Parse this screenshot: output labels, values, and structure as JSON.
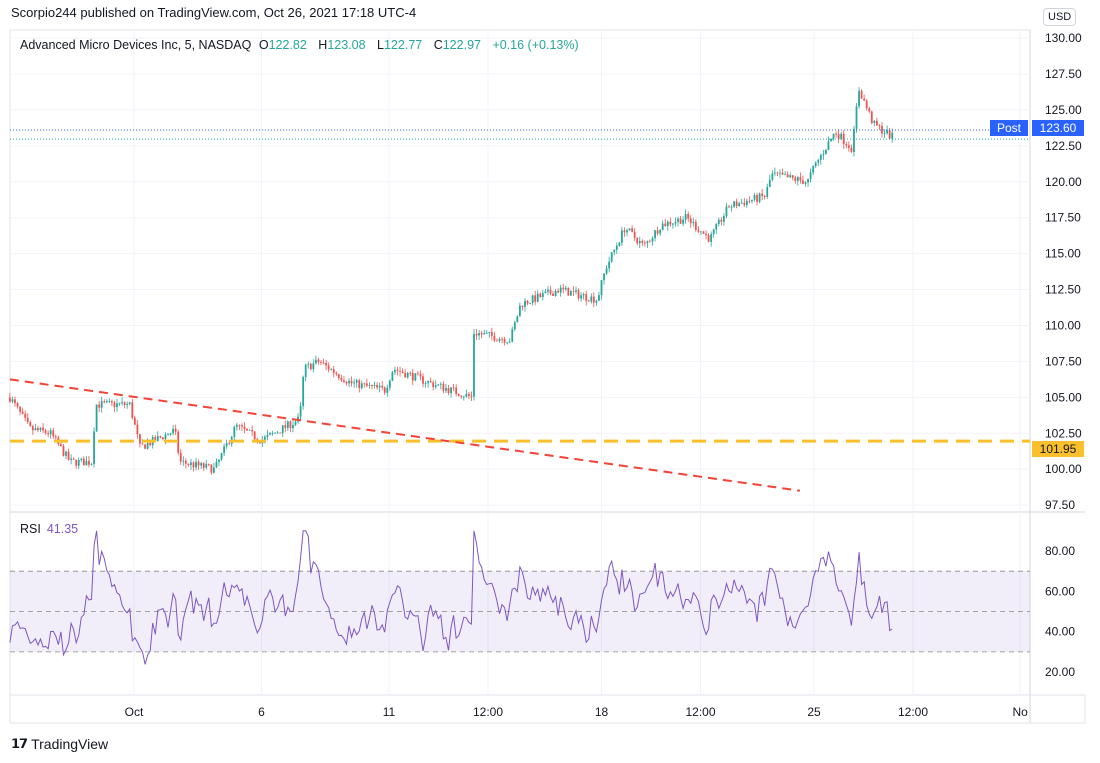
{
  "header": {
    "published": "Scorpio244 published on TradingView.com, Oct 26, 2021 17:18 UTC-4"
  },
  "legend": {
    "symbol": "Advanced Micro Devices Inc, 5, NASDAQ",
    "o_label": "O",
    "o": "122.82",
    "h_label": "H",
    "h": "123.08",
    "l_label": "L",
    "l": "122.77",
    "c_label": "C",
    "c": "122.97",
    "change": "+0.16 (+0.13%)"
  },
  "price_scale": {
    "currency": "USD",
    "ticks": [
      "130.00",
      "127.50",
      "125.00",
      "122.50",
      "120.00",
      "117.50",
      "115.00",
      "112.50",
      "110.00",
      "107.50",
      "105.00",
      "102.50",
      "100.00",
      "97.50"
    ],
    "post_label": "Post",
    "post_value": "123.60",
    "level_value": "101.95"
  },
  "rsi": {
    "label": "RSI",
    "value": "41.35",
    "ticks": [
      "80.00",
      "60.00",
      "40.00",
      "20.00"
    ]
  },
  "time_axis": {
    "labels": [
      {
        "t": "Oct",
        "s": 0
      },
      {
        "t": "6",
        "s": 3
      },
      {
        "t": "11",
        "s": 6
      },
      {
        "t": "12:00",
        "s": 8.33
      },
      {
        "t": "18",
        "s": 11
      },
      {
        "t": "12:00",
        "s": 13.33
      },
      {
        "t": "25",
        "s": 16
      },
      {
        "t": "12:00",
        "s": 18.33
      },
      {
        "t": "No",
        "s": 20.85
      }
    ]
  },
  "brand": {
    "name": "TradingView"
  },
  "colors": {
    "up": "#26a69a",
    "down": "#ef5350",
    "rsi": "#7e57c2",
    "level": "#f9c02b",
    "trend": "#f44336",
    "post": "#2962ff"
  },
  "chart_data": {
    "type": "candlestick",
    "x_unit": "trading session index (0 = Oct 1 open)",
    "x_range": [
      -2.92,
      21.1
    ],
    "ylim": [
      96.5,
      130.5
    ],
    "price_path": [
      [
        -2.92,
        105
      ],
      [
        -2.45,
        102.8
      ],
      [
        -1.97,
        102.5
      ],
      [
        -1.5,
        100.5
      ],
      [
        -1.0,
        100.5
      ],
      [
        -0.9,
        104.5
      ],
      [
        -0.1,
        104.5
      ],
      [
        0.14,
        101.5
      ],
      [
        0.96,
        102.7
      ],
      [
        1.08,
        100.5
      ],
      [
        1.9,
        100
      ],
      [
        2.4,
        103
      ],
      [
        3.0,
        102
      ],
      [
        3.9,
        103.5
      ],
      [
        4.0,
        107
      ],
      [
        4.35,
        107.5
      ],
      [
        5.1,
        106
      ],
      [
        5.9,
        105.5
      ],
      [
        6.1,
        107
      ],
      [
        6.96,
        106
      ],
      [
        7.95,
        105
      ],
      [
        8.0,
        109.5
      ],
      [
        8.85,
        109
      ],
      [
        9.1,
        111.5
      ],
      [
        10.0,
        112.5
      ],
      [
        10.9,
        111.8
      ],
      [
        11.1,
        114
      ],
      [
        11.55,
        116.8
      ],
      [
        12.0,
        115.5
      ],
      [
        12.4,
        117
      ],
      [
        13.0,
        117.5
      ],
      [
        13.55,
        116
      ],
      [
        14.0,
        118.3
      ],
      [
        14.85,
        119
      ],
      [
        15.0,
        120.5
      ],
      [
        15.85,
        120
      ],
      [
        16.0,
        121
      ],
      [
        16.5,
        123.5
      ],
      [
        16.9,
        122.3
      ],
      [
        17.05,
        126.5
      ],
      [
        17.4,
        124
      ],
      [
        17.9,
        123
      ]
    ],
    "horizontal_level": 101.95,
    "trendline": [
      [
        -2.92,
        106.25
      ],
      [
        15.67,
        98.5
      ]
    ],
    "post_price": 123.6,
    "last_close": 122.97,
    "rsi": {
      "band": [
        30,
        70
      ],
      "mid": 50,
      "ylim": [
        12,
        92
      ],
      "last": 41.35
    }
  }
}
